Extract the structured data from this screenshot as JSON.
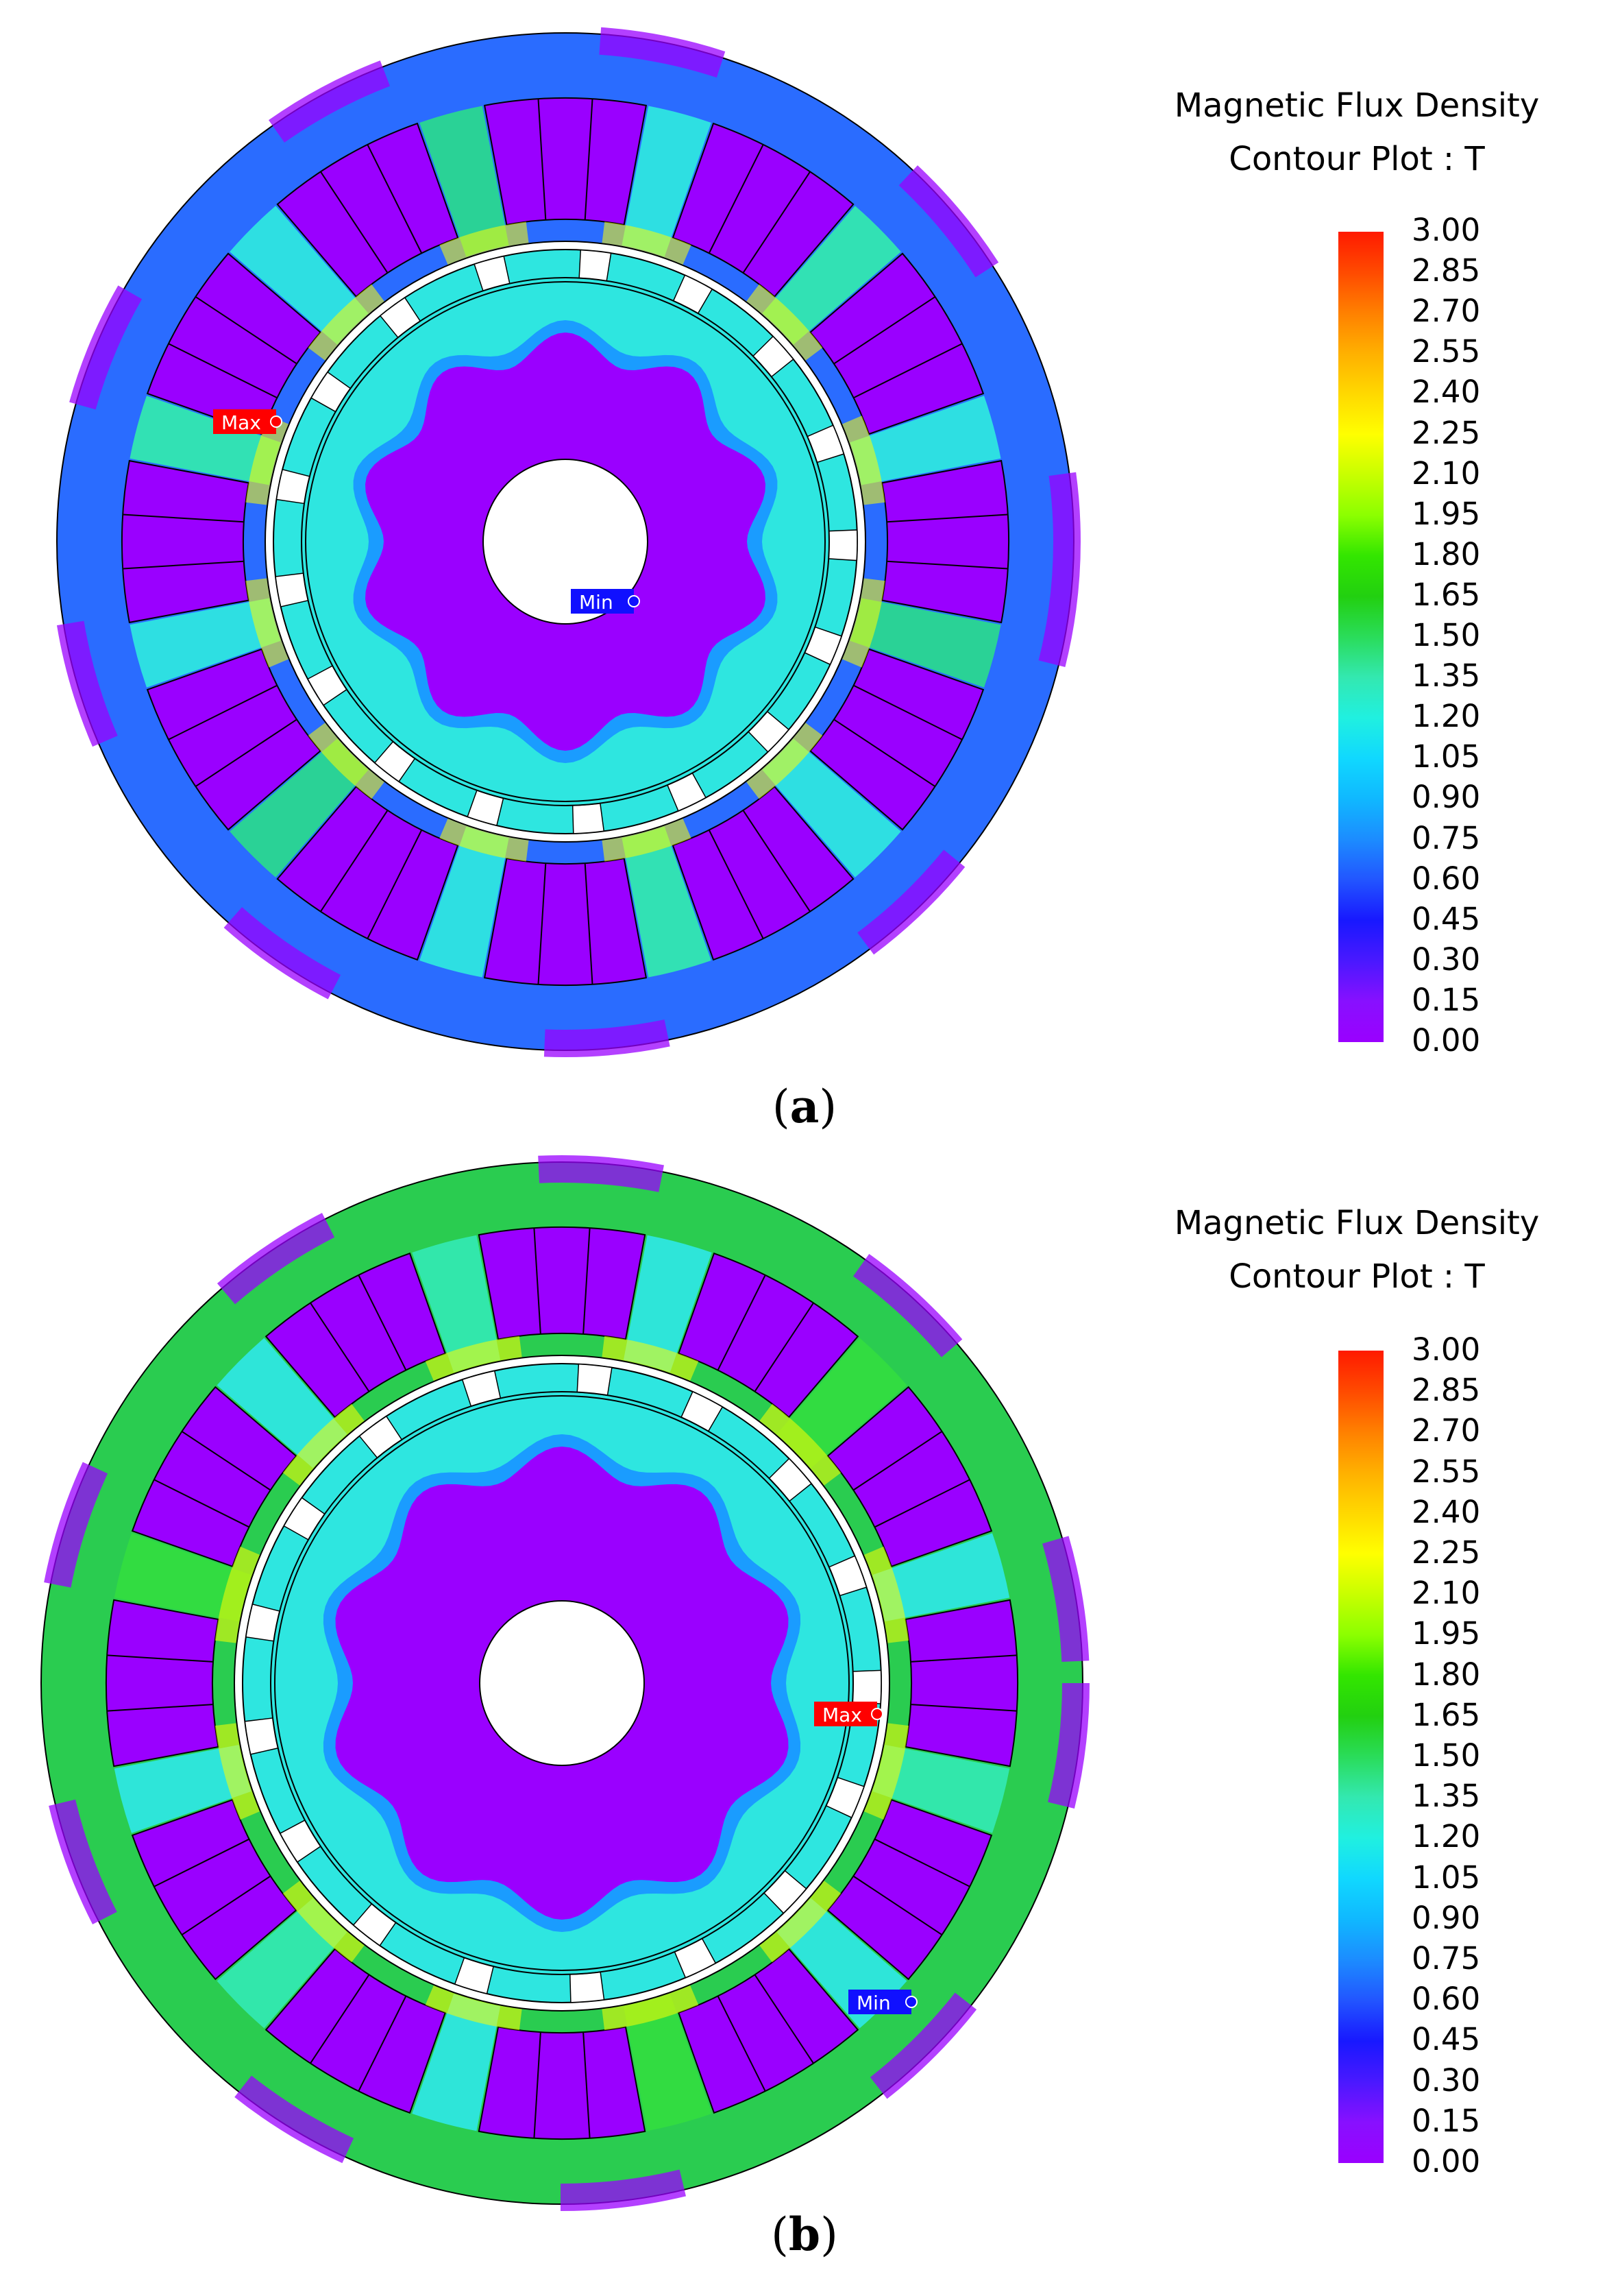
{
  "panels": [
    {
      "id": "a",
      "caption_letter": "a",
      "legend_title_line1": "Magnetic Flux Density",
      "legend_title_line2": "Contour Plot : T",
      "max_label": "Max",
      "min_label": "Min"
    },
    {
      "id": "b",
      "caption_letter": "b",
      "legend_title_line1": "Magnetic Flux Density",
      "legend_title_line2": "Contour Plot : T",
      "max_label": "Max",
      "min_label": "Min"
    }
  ],
  "scale_ticks": [
    "3.00",
    "2.85",
    "2.70",
    "2.55",
    "2.40",
    "2.25",
    "2.10",
    "1.95",
    "1.80",
    "1.65",
    "1.50",
    "1.35",
    "1.20",
    "1.05",
    "0.90",
    "0.75",
    "0.60",
    "0.45",
    "0.30",
    "0.15",
    "0.00"
  ],
  "scale_colors": [
    "#ff1a00",
    "#ff4a00",
    "#ff8000",
    "#ffb000",
    "#ffd800",
    "#ffff00",
    "#c8ff00",
    "#8cff00",
    "#33e600",
    "#22d010",
    "#2adc5a",
    "#33e8b0",
    "#20f0e0",
    "#10d8ff",
    "#10b8ff",
    "#1c8cff",
    "#2255ff",
    "#1818ff",
    "#4a18ff",
    "#8810ff",
    "#9a00ff"
  ],
  "colors": {
    "violet": "#9a00ff",
    "cyan": "#2ee6e0",
    "green": "#33dc40",
    "blue": "#1e64ff",
    "yellow": "#ffff00",
    "max_marker": "#ff0000",
    "min_marker": "#1010ff"
  }
}
